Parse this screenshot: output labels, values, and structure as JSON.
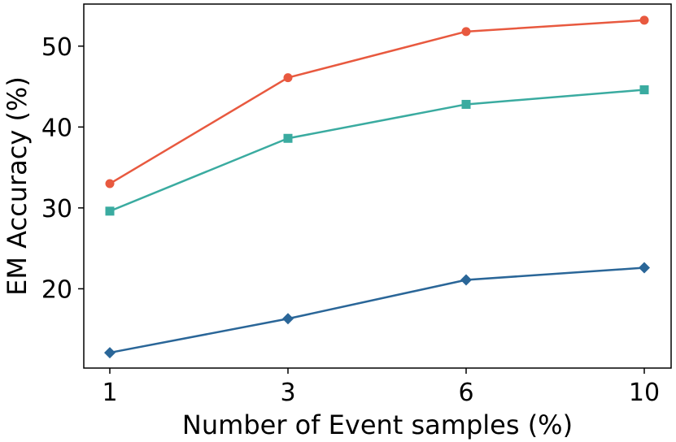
{
  "chart_data": {
    "type": "line",
    "title": "",
    "xlabel": "Number of Event samples (%)",
    "ylabel": "EM Accuracy (%)",
    "x": [
      1,
      3,
      6,
      10
    ],
    "x_tick_labels": [
      "1",
      "3",
      "6",
      "10"
    ],
    "y_ticks": [
      20,
      30,
      40,
      50
    ],
    "y_tick_labels": [
      "20",
      "30",
      "40",
      "50"
    ],
    "ylim": [
      10.2,
      55.2
    ],
    "grid": false,
    "series": [
      {
        "values": [
          33.0,
          46.1,
          51.8,
          53.2
        ],
        "color": "#e8593f",
        "marker": "circle"
      },
      {
        "values": [
          29.6,
          38.6,
          42.8,
          44.6
        ],
        "color": "#3aaba0",
        "marker": "square"
      },
      {
        "values": [
          12.1,
          16.3,
          21.1,
          22.6
        ],
        "color": "#2a6698",
        "marker": "diamond"
      }
    ]
  }
}
